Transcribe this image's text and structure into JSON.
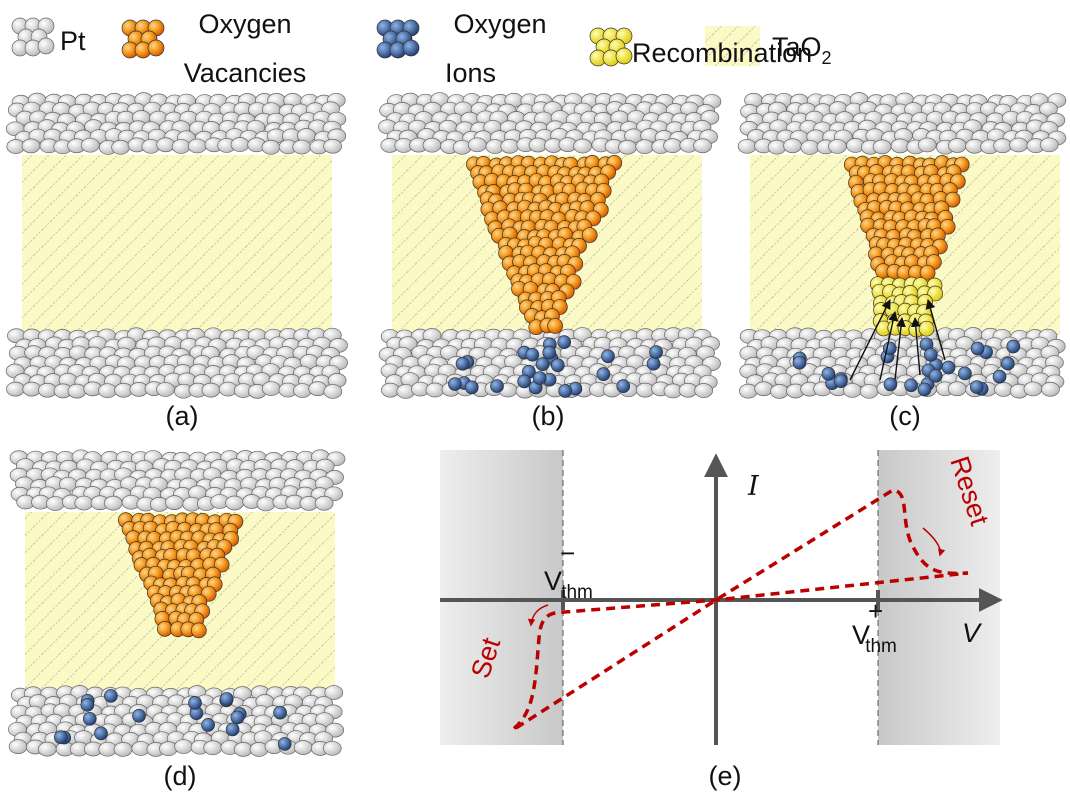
{
  "legend": [
    {
      "label": "Pt"
    },
    {
      "lines": [
        "Oxygen",
        "Vacancies"
      ]
    },
    {
      "lines": [
        "Oxygen",
        "Ions"
      ]
    },
    {
      "label": "Recombination"
    },
    {
      "label": "TaO",
      "sub": "2"
    }
  ],
  "panels": [
    {
      "label": "(a)"
    },
    {
      "label": "(b)"
    },
    {
      "label": "(c)"
    },
    {
      "label": "(d)"
    },
    {
      "label": "(e)"
    }
  ],
  "plot": {
    "y_axis": "I",
    "x_axis": "V",
    "v_minus": {
      "base": "V",
      "sub": "thm",
      "sup": "−"
    },
    "v_plus": {
      "base": "V",
      "sub": "thm",
      "sup": "+"
    },
    "set": "Set",
    "reset": "Reset"
  }
}
